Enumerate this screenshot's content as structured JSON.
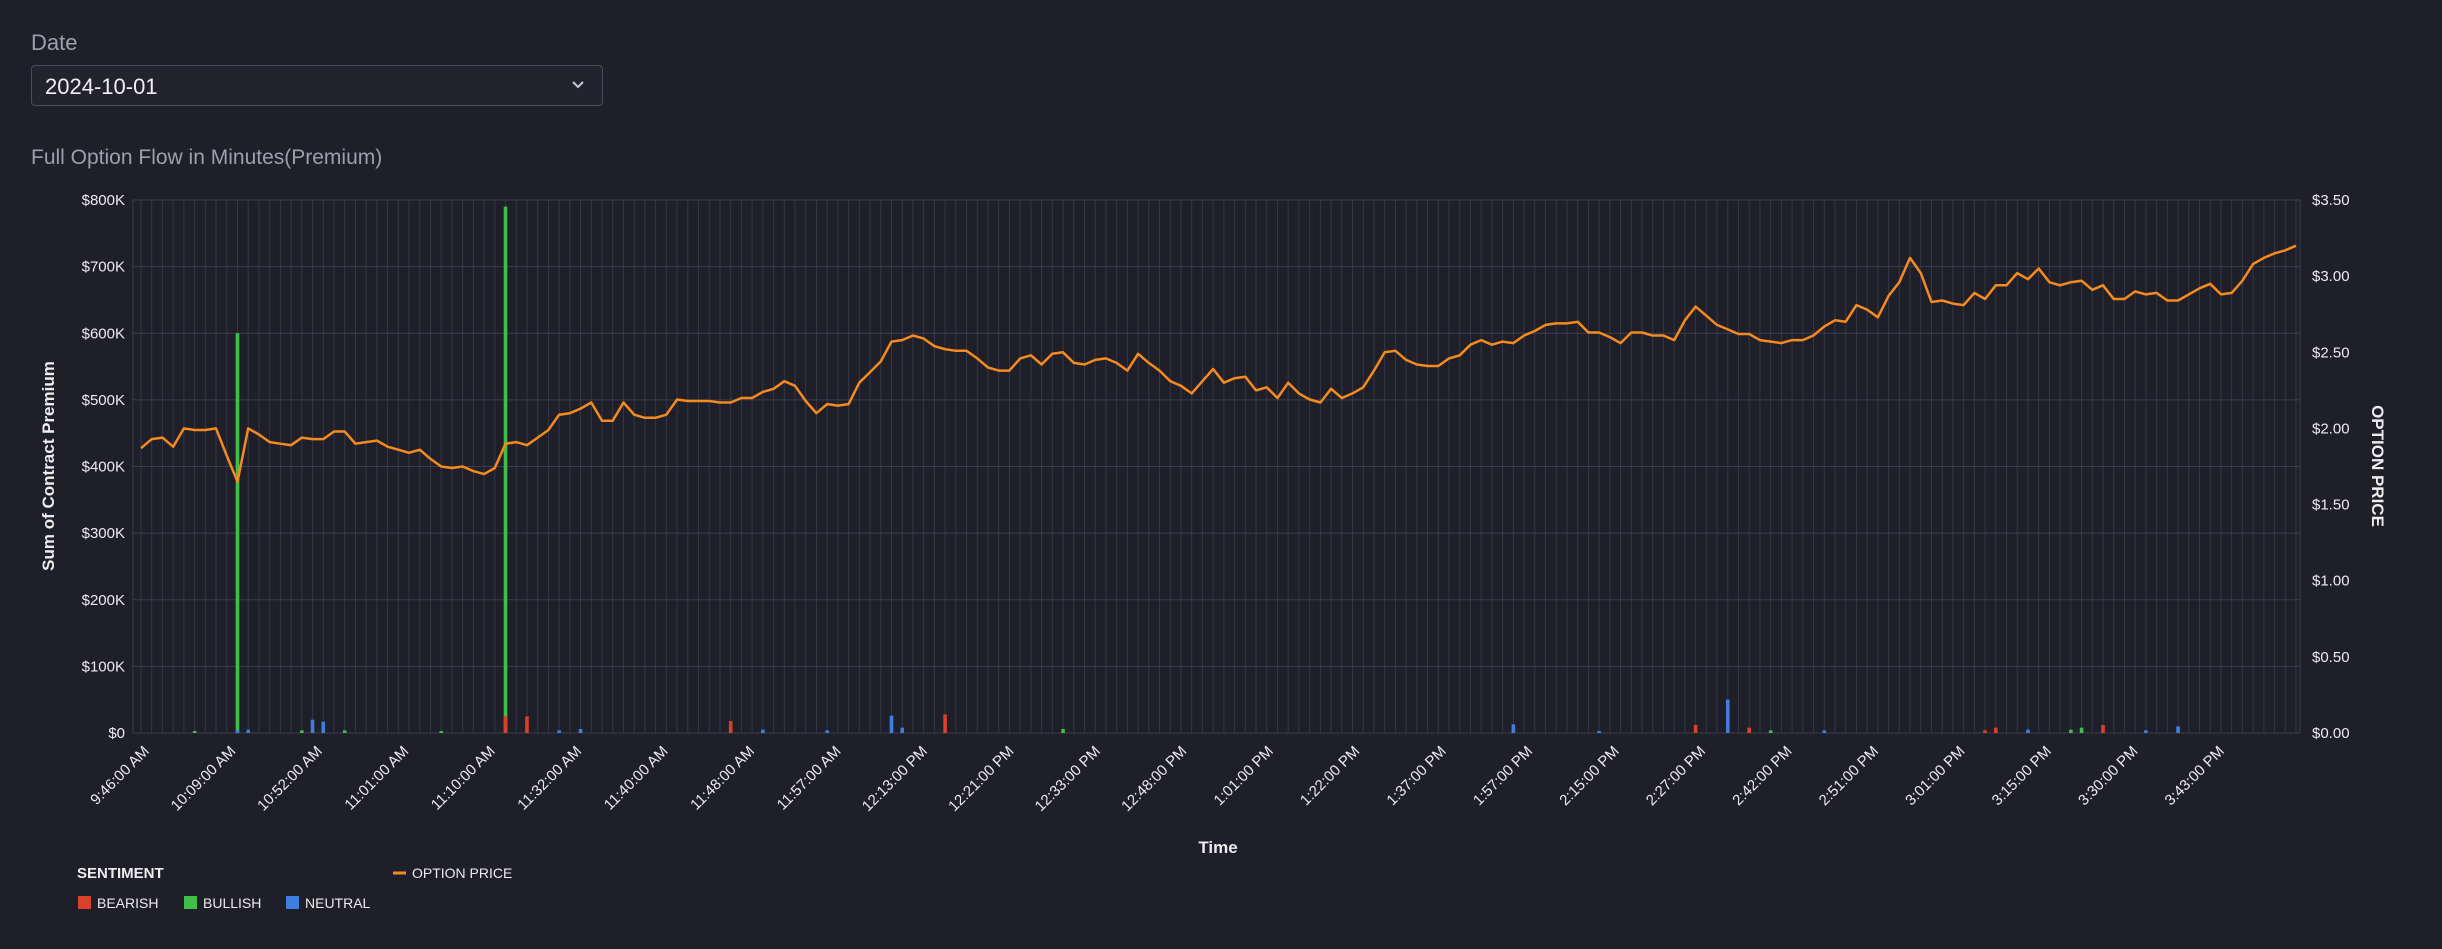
{
  "filters": {
    "date_label": "Date",
    "date_value": "2024-10-01"
  },
  "chart_title": "Full Option Flow in Minutes(Premium)",
  "chart_data": {
    "type": "bar+line",
    "title": "Full Option Flow in Minutes(Premium)",
    "xlabel": "Time",
    "ylabel": "Sum of Contract Premium",
    "y2label": "OPTION PRICE",
    "ylim": [
      0,
      800000
    ],
    "y2lim": [
      0,
      3.5
    ],
    "grid": true,
    "legend_placement": "bottom-left",
    "y_ticks": [
      "$0",
      "$100K",
      "$200K",
      "$300K",
      "$400K",
      "$500K",
      "$600K",
      "$700K",
      "$800K"
    ],
    "y2_ticks": [
      "$0.00",
      "$0.50",
      "$1.00",
      "$1.50",
      "$2.00",
      "$2.50",
      "$3.00",
      "$3.50"
    ],
    "x_tick_labels": [
      "9:46:00 AM",
      "10:09:00 AM",
      "10:52:00 AM",
      "11:01:00 AM",
      "11:10:00 AM",
      "11:32:00 AM",
      "11:40:00 AM",
      "11:48:00 AM",
      "11:57:00 AM",
      "12:13:00 PM",
      "12:21:00 PM",
      "12:33:00 PM",
      "12:48:00 PM",
      "1:01:00 PM",
      "1:22:00 PM",
      "1:37:00 PM",
      "1:57:00 PM",
      "2:15:00 PM",
      "2:27:00 PM",
      "2:42:00 PM",
      "2:51:00 PM",
      "3:01:00 PM",
      "3:15:00 PM",
      "3:30:00 PM",
      "3:43:00 PM"
    ],
    "legend": {
      "bars_title": "SENTIMENT",
      "bars": [
        {
          "name": "BEARISH",
          "color": "#d9412b"
        },
        {
          "name": "BULLISH",
          "color": "#3fbf48"
        },
        {
          "name": "NEUTRAL",
          "color": "#3f7ddf"
        }
      ],
      "line": {
        "name": "OPTION PRICE",
        "color": "#f58a1f"
      }
    },
    "line_series": {
      "name": "OPTION PRICE",
      "values": [
        1.87,
        1.93,
        1.94,
        1.88,
        2.0,
        1.99,
        1.99,
        2.0,
        1.82,
        1.65,
        2.0,
        1.96,
        1.91,
        1.9,
        1.89,
        1.94,
        1.93,
        1.93,
        1.98,
        1.98,
        1.9,
        1.91,
        1.92,
        1.88,
        1.86,
        1.84,
        1.86,
        1.8,
        1.75,
        1.74,
        1.75,
        1.72,
        1.7,
        1.74,
        1.9,
        1.91,
        1.89,
        1.94,
        1.99,
        2.09,
        2.1,
        2.13,
        2.17,
        2.05,
        2.05,
        2.17,
        2.09,
        2.07,
        2.07,
        2.09,
        2.19,
        2.18,
        2.18,
        2.18,
        2.17,
        2.17,
        2.2,
        2.2,
        2.24,
        2.26,
        2.31,
        2.28,
        2.18,
        2.1,
        2.16,
        2.15,
        2.16,
        2.3,
        2.37,
        2.44,
        2.57,
        2.58,
        2.61,
        2.59,
        2.54,
        2.52,
        2.51,
        2.51,
        2.46,
        2.4,
        2.38,
        2.38,
        2.46,
        2.48,
        2.42,
        2.49,
        2.5,
        2.43,
        2.42,
        2.45,
        2.46,
        2.43,
        2.38,
        2.49,
        2.43,
        2.38,
        2.31,
        2.28,
        2.23,
        2.31,
        2.39,
        2.3,
        2.33,
        2.34,
        2.25,
        2.27,
        2.2,
        2.3,
        2.23,
        2.19,
        2.17,
        2.26,
        2.2,
        2.23,
        2.27,
        2.38,
        2.5,
        2.51,
        2.45,
        2.42,
        2.41,
        2.41,
        2.46,
        2.48,
        2.55,
        2.58,
        2.55,
        2.57,
        2.56,
        2.61,
        2.64,
        2.68,
        2.69,
        2.69,
        2.7,
        2.63,
        2.63,
        2.6,
        2.56,
        2.63,
        2.63,
        2.61,
        2.61,
        2.58,
        2.71,
        2.8,
        2.74,
        2.68,
        2.65,
        2.62,
        2.62,
        2.58,
        2.57,
        2.56,
        2.58,
        2.58,
        2.61,
        2.67,
        2.71,
        2.7,
        2.81,
        2.78,
        2.73,
        2.87,
        2.96,
        3.12,
        3.02,
        2.83,
        2.84,
        2.82,
        2.81,
        2.89,
        2.85,
        2.94,
        2.94,
        3.02,
        2.98,
        3.05,
        2.96,
        2.94,
        2.96,
        2.97,
        2.91,
        2.94,
        2.85,
        2.85,
        2.9,
        2.88,
        2.89,
        2.84,
        2.84,
        2.88,
        2.92,
        2.95,
        2.88,
        2.89,
        2.97,
        3.08,
        3.12,
        3.15,
        3.17,
        3.2
      ]
    },
    "bar_series": [
      {
        "name": "BULLISH",
        "color": "#3fbf48",
        "points": [
          [
            5,
            3000
          ],
          [
            9,
            600000
          ],
          [
            15,
            4000
          ],
          [
            17,
            6000
          ],
          [
            19,
            4000
          ],
          [
            28,
            3000
          ],
          [
            34,
            790000
          ],
          [
            86,
            6000
          ],
          [
            152,
            4000
          ],
          [
            180,
            5000
          ],
          [
            181,
            8000
          ]
        ]
      },
      {
        "name": "BEARISH",
        "color": "#d9412b",
        "points": [
          [
            34,
            25000
          ],
          [
            36,
            25000
          ],
          [
            55,
            18000
          ],
          [
            75,
            28000
          ],
          [
            145,
            12000
          ],
          [
            150,
            8000
          ],
          [
            172,
            4000
          ],
          [
            173,
            8000
          ],
          [
            183,
            12000
          ]
        ]
      },
      {
        "name": "NEUTRAL",
        "color": "#3f7ddf",
        "points": [
          [
            9,
            4000
          ],
          [
            10,
            5000
          ],
          [
            16,
            20000
          ],
          [
            17,
            17000
          ],
          [
            39,
            4000
          ],
          [
            41,
            6000
          ],
          [
            58,
            5000
          ],
          [
            64,
            4000
          ],
          [
            70,
            26000
          ],
          [
            71,
            8000
          ],
          [
            128,
            13000
          ],
          [
            136,
            3000
          ],
          [
            148,
            50000
          ],
          [
            157,
            4000
          ],
          [
            176,
            5000
          ],
          [
            187,
            4000
          ],
          [
            190,
            10000
          ]
        ]
      }
    ]
  }
}
